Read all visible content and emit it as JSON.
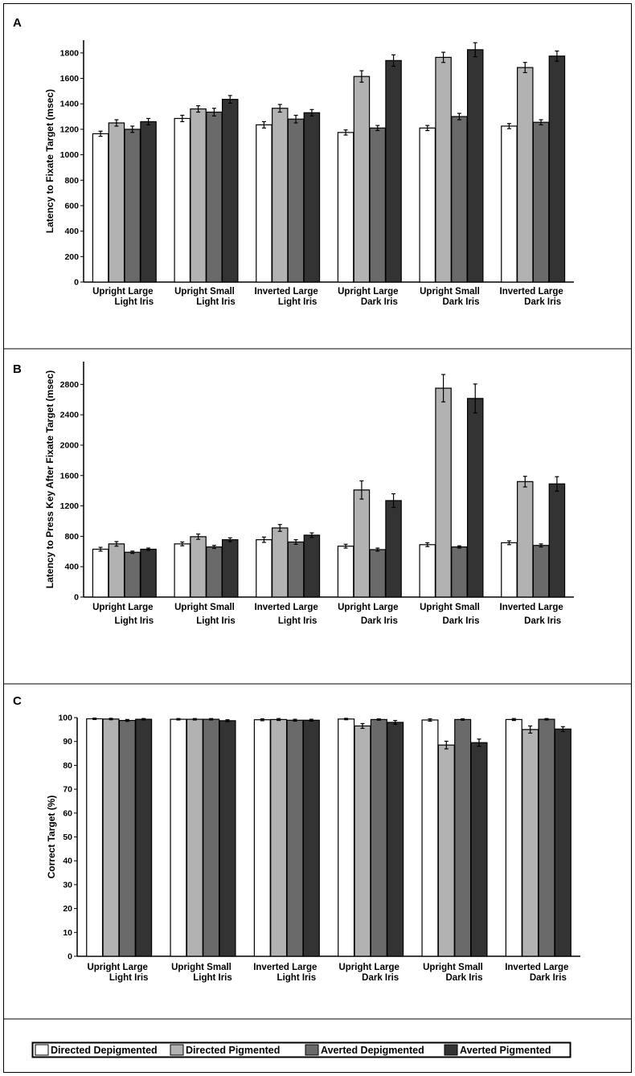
{
  "colors": {
    "series": [
      "#ffffff",
      "#b2b2b2",
      "#6a6a6a",
      "#333333"
    ],
    "stroke": "#000000",
    "frame": "#000000"
  },
  "legend": {
    "placement": "bottom",
    "entries": [
      "Directed Depigmented",
      "Directed Pigmented",
      "Averted Depigmented",
      "Averted Pigmented"
    ]
  },
  "chart_data": [
    {
      "panel": "A",
      "type": "bar",
      "ylabel": "Latency to Fixate Target (msec)",
      "ylim": [
        0,
        1900
      ],
      "yticks": [
        0,
        200,
        400,
        600,
        800,
        1000,
        1200,
        1400,
        1600,
        1800
      ],
      "categories": [
        [
          "Upright Large",
          "Light Iris"
        ],
        [
          "Upright Small",
          "Light Iris"
        ],
        [
          "Inverted Large",
          "Light Iris"
        ],
        [
          "Upright Large",
          "Dark Iris"
        ],
        [
          "Upright Small",
          "Dark Iris"
        ],
        [
          "Inverted Large",
          "Dark Iris"
        ]
      ],
      "series": [
        {
          "name": "Directed Depigmented",
          "values": [
            1165,
            1285,
            1235,
            1175,
            1210,
            1225
          ],
          "errors": [
            20,
            25,
            25,
            20,
            20,
            20
          ]
        },
        {
          "name": "Directed Pigmented",
          "values": [
            1250,
            1360,
            1365,
            1615,
            1765,
            1685
          ],
          "errors": [
            25,
            25,
            30,
            45,
            40,
            40
          ]
        },
        {
          "name": "Averted Depigmented",
          "values": [
            1200,
            1335,
            1280,
            1210,
            1300,
            1255
          ],
          "errors": [
            25,
            30,
            30,
            20,
            25,
            20
          ]
        },
        {
          "name": "Averted Pigmented",
          "values": [
            1260,
            1435,
            1330,
            1740,
            1825,
            1775
          ],
          "errors": [
            25,
            30,
            25,
            45,
            55,
            40
          ]
        }
      ]
    },
    {
      "panel": "B",
      "type": "bar",
      "ylabel": "Latency to Press Key After Fixate Target (msec)",
      "ylim": [
        0,
        3100
      ],
      "yticks": [
        0,
        400,
        800,
        1200,
        1600,
        2000,
        2400,
        2800
      ],
      "categories": [
        [
          "Upright Large",
          "Light Iris"
        ],
        [
          "Upright Small",
          "Light Iris"
        ],
        [
          "Inverted Large",
          "Light Iris"
        ],
        [
          "Upright Large",
          "Dark Iris"
        ],
        [
          "Upright Small",
          "Dark Iris"
        ],
        [
          "Inverted Large",
          "Dark Iris"
        ]
      ],
      "series": [
        {
          "name": "Directed Depigmented",
          "values": [
            630,
            700,
            755,
            670,
            690,
            715
          ],
          "errors": [
            25,
            25,
            35,
            25,
            25,
            25
          ]
        },
        {
          "name": "Directed Pigmented",
          "values": [
            700,
            795,
            910,
            1410,
            2750,
            1520
          ],
          "errors": [
            30,
            35,
            45,
            120,
            180,
            70
          ]
        },
        {
          "name": "Averted Depigmented",
          "values": [
            590,
            660,
            725,
            625,
            660,
            680
          ],
          "errors": [
            15,
            20,
            30,
            20,
            15,
            20
          ]
        },
        {
          "name": "Averted Pigmented",
          "values": [
            630,
            755,
            815,
            1270,
            2615,
            1490
          ],
          "errors": [
            15,
            25,
            30,
            90,
            190,
            95
          ]
        }
      ]
    },
    {
      "panel": "C",
      "type": "bar",
      "ylabel": "Correct Target (%)",
      "ylim": [
        0,
        100
      ],
      "yticks": [
        0,
        10,
        20,
        30,
        40,
        50,
        60,
        70,
        80,
        90,
        100
      ],
      "categories": [
        [
          "Upright Large",
          "Light Iris"
        ],
        [
          "Upright Small",
          "Light Iris"
        ],
        [
          "Inverted Large",
          "Light Iris"
        ],
        [
          "Upright Large",
          "Dark Iris"
        ],
        [
          "Upright Small",
          "Dark Iris"
        ],
        [
          "Inverted Large",
          "Dark Iris"
        ]
      ],
      "series": [
        {
          "name": "Directed Depigmented",
          "values": [
            99.5,
            99.3,
            99.1,
            99.4,
            99.0,
            99.2
          ],
          "errors": [
            0.3,
            0.3,
            0.4,
            0.3,
            0.5,
            0.4
          ]
        },
        {
          "name": "Directed Pigmented",
          "values": [
            99.4,
            99.3,
            99.2,
            96.5,
            88.5,
            95.0
          ],
          "errors": [
            0.3,
            0.3,
            0.4,
            1.0,
            1.6,
            1.5
          ]
        },
        {
          "name": "Averted Depigmented",
          "values": [
            98.8,
            99.3,
            98.9,
            99.2,
            99.2,
            99.3
          ],
          "errors": [
            0.4,
            0.3,
            0.4,
            0.3,
            0.3,
            0.3
          ]
        },
        {
          "name": "Averted Pigmented",
          "values": [
            99.3,
            98.7,
            98.9,
            98.0,
            89.5,
            95.2
          ],
          "errors": [
            0.3,
            0.4,
            0.4,
            0.8,
            1.5,
            1.0
          ]
        }
      ]
    }
  ]
}
